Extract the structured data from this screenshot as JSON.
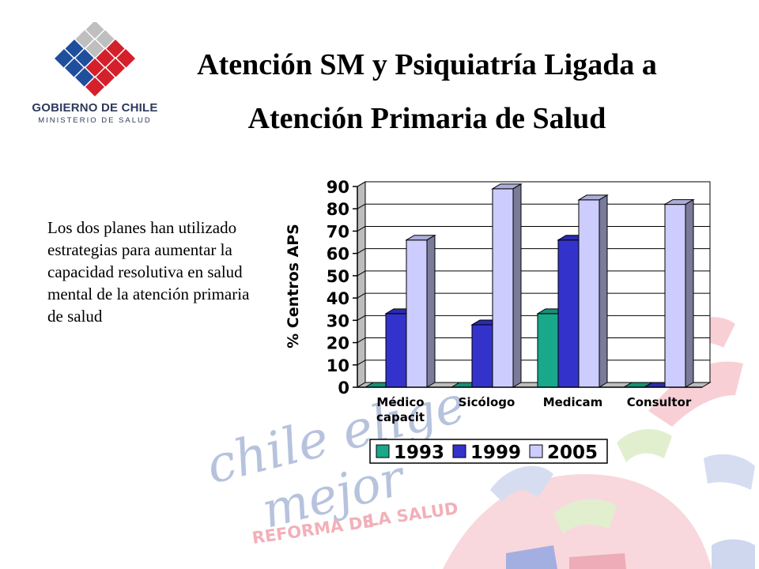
{
  "logo": {
    "line1": "GOBIERNO DE CHILE",
    "line2": "MINISTERIO DE SALUD",
    "colors": [
      "#1f4e9c",
      "#d4202b",
      "#bfbfbf"
    ]
  },
  "title": {
    "line1": "Atención SM y Psiquiatría Ligada a",
    "line2": "Atención Primaria de Salud"
  },
  "body": {
    "paragraph": "Los dos planes han utilizado estrategias para aumentar la capacidad resolutiva en salud mental de la atención primaria de salud"
  },
  "watermark": {
    "script1": "chile elige",
    "script2": "mejor",
    "line1": "REFORMA DE",
    "line2": "LA SALUD"
  },
  "chart_data": {
    "type": "bar",
    "categories": [
      "Médico capacit",
      "Sicólogo",
      "Medicam",
      "Consultor"
    ],
    "category_lines": [
      [
        "Médico",
        "capacit"
      ],
      [
        "Sicólogo"
      ],
      [
        "Medicam"
      ],
      [
        "Consultor"
      ]
    ],
    "series": [
      {
        "name": "1993",
        "values": [
          0,
          0,
          33,
          0
        ],
        "color": "#1aa88a"
      },
      {
        "name": "1999",
        "values": [
          33,
          28,
          66,
          0
        ],
        "color": "#3333cc"
      },
      {
        "name": "2005",
        "values": [
          66,
          89,
          84,
          82
        ],
        "color": "#ccccff"
      }
    ],
    "ylabel": "% Centros APS",
    "ylim": [
      0,
      90
    ],
    "yticks": [
      0,
      10,
      20,
      30,
      40,
      50,
      60,
      70,
      80,
      90
    ],
    "grid": true,
    "legend": "bottom"
  }
}
